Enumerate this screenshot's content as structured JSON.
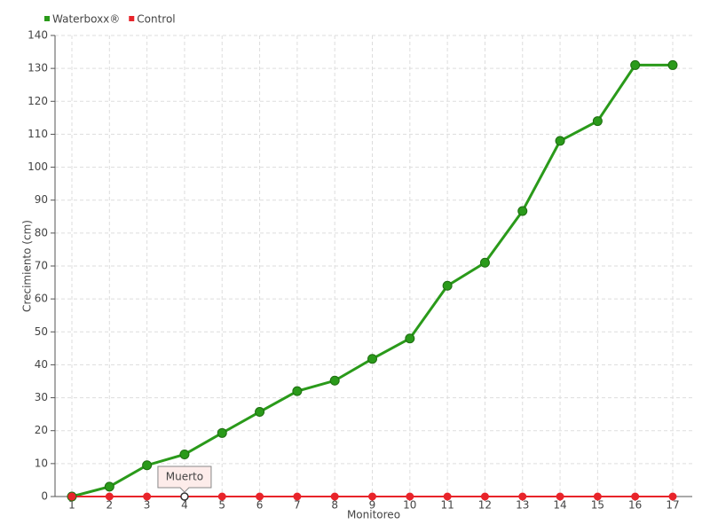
{
  "chart_data": {
    "type": "line",
    "categories": [
      "1",
      "2",
      "3",
      "4",
      "5",
      "6",
      "7",
      "8",
      "9",
      "10",
      "11",
      "12",
      "13",
      "14",
      "15",
      "16",
      "17"
    ],
    "series": [
      {
        "name": "Waterboxx®",
        "color": "#2a9a1a",
        "values": [
          0,
          3,
          9.5,
          12.8,
          19.3,
          25.7,
          32,
          35.2,
          41.8,
          48,
          64,
          71,
          86.7,
          108,
          114,
          131,
          131
        ]
      },
      {
        "name": "Control",
        "color": "#e8242a",
        "values": [
          0,
          0,
          0,
          0,
          0,
          0,
          0,
          0,
          0,
          0,
          0,
          0,
          0,
          0,
          0,
          0,
          0
        ]
      }
    ],
    "ylim": [
      0,
      140
    ],
    "yticks": [
      0,
      10,
      20,
      30,
      40,
      50,
      60,
      70,
      80,
      90,
      100,
      110,
      120,
      130,
      140
    ],
    "xlabel": "Monitoreo",
    "ylabel": "Crecimiento (cm)",
    "grid": true,
    "annotation": {
      "text": "Muerto",
      "category": "4",
      "series": "Control"
    }
  }
}
